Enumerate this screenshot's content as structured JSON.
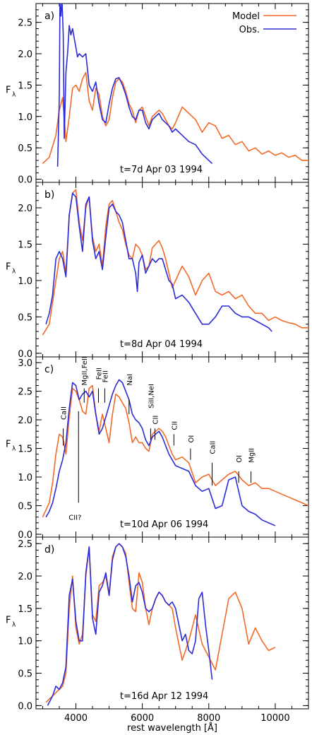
{
  "figure": {
    "x_axis_label": "rest wavelength [Å]",
    "y_axis_label": "F",
    "y_axis_label_sub": "λ",
    "x_tick_labels": [
      "4000",
      "6000",
      "8000",
      "10000"
    ],
    "colors": {
      "model": "#f26a28",
      "obs": "#2b2bd9",
      "axes": "#000000"
    }
  },
  "legend": {
    "model_label": "Model",
    "obs_label": "Obs."
  },
  "chart_data": [
    {
      "type": "line",
      "panel": "a)",
      "caption": "t=7d   Apr 03  1994",
      "xlim": [
        2800,
        11000
      ],
      "ylim": [
        -0.05,
        2.8
      ],
      "yticks": [
        0.0,
        0.5,
        1.0,
        1.5,
        2.0,
        2.5
      ],
      "xticks": [
        4000,
        6000,
        8000,
        10000
      ],
      "series": [
        {
          "name": "Model",
          "color": "#f26a28",
          "x": [
            3000,
            3200,
            3400,
            3500,
            3600,
            3700,
            3800,
            3900,
            4000,
            4100,
            4200,
            4300,
            4400,
            4500,
            4600,
            4700,
            4800,
            4900,
            5000,
            5100,
            5200,
            5300,
            5400,
            5500,
            5600,
            5700,
            5800,
            5900,
            6000,
            6100,
            6200,
            6300,
            6400,
            6500,
            6600,
            6700,
            6800,
            6900,
            7000,
            7200,
            7400,
            7600,
            7800,
            8000,
            8200,
            8400,
            8600,
            8800,
            9000,
            9200,
            9400,
            9600,
            9800,
            10000,
            10200,
            10400,
            10600,
            10800,
            11000
          ],
          "y": [
            0.25,
            0.35,
            0.7,
            1.1,
            1.3,
            0.6,
            1.0,
            1.45,
            1.5,
            1.4,
            1.6,
            1.7,
            1.25,
            1.1,
            1.45,
            1.35,
            1.0,
            0.85,
            0.95,
            1.3,
            1.55,
            1.6,
            1.55,
            1.4,
            1.2,
            1.1,
            0.9,
            1.1,
            1.15,
            1.0,
            0.85,
            1.0,
            1.05,
            1.1,
            1.05,
            0.95,
            0.85,
            0.8,
            0.9,
            1.15,
            1.05,
            0.95,
            0.75,
            0.9,
            0.85,
            0.65,
            0.7,
            0.55,
            0.6,
            0.45,
            0.5,
            0.4,
            0.45,
            0.38,
            0.42,
            0.35,
            0.38,
            0.3,
            0.3
          ]
        },
        {
          "name": "Obs.",
          "color": "#2b2bd9",
          "x": [
            3450,
            3500,
            3520,
            3550,
            3580,
            3620,
            3650,
            3700,
            3750,
            3800,
            3850,
            3900,
            3950,
            4000,
            4050,
            4100,
            4200,
            4300,
            4400,
            4500,
            4600,
            4700,
            4800,
            4900,
            5000,
            5100,
            5200,
            5300,
            5400,
            5500,
            5600,
            5700,
            5800,
            5900,
            6000,
            6100,
            6200,
            6300,
            6400,
            6500,
            6600,
            6700,
            6800,
            6900,
            7000,
            7100,
            7200,
            7400,
            7600,
            7800,
            8000,
            8100
          ],
          "y": [
            0.2,
            1.3,
            2.8,
            2.6,
            2.9,
            2.3,
            0.65,
            1.7,
            2.0,
            2.45,
            2.3,
            2.4,
            2.25,
            2.1,
            1.95,
            2.0,
            1.95,
            2.0,
            1.5,
            1.4,
            1.55,
            1.2,
            0.95,
            0.9,
            1.2,
            1.45,
            1.6,
            1.62,
            1.5,
            1.35,
            1.15,
            1.0,
            0.95,
            1.1,
            1.1,
            0.9,
            0.8,
            0.95,
            1.0,
            1.05,
            0.95,
            0.9,
            0.85,
            0.75,
            0.8,
            0.75,
            0.7,
            0.6,
            0.55,
            0.4,
            0.3,
            0.25
          ]
        }
      ]
    },
    {
      "type": "line",
      "panel": "b)",
      "caption": "t=8d   Apr 04  1994",
      "xlim": [
        2800,
        11000
      ],
      "ylim": [
        -0.05,
        2.35
      ],
      "yticks": [
        0.0,
        0.5,
        1.0,
        1.5,
        2.0
      ],
      "xticks": [
        4000,
        6000,
        8000,
        10000
      ],
      "series": [
        {
          "name": "Model",
          "color": "#f26a28",
          "x": [
            3000,
            3200,
            3400,
            3500,
            3600,
            3700,
            3800,
            3900,
            4000,
            4100,
            4200,
            4300,
            4400,
            4500,
            4600,
            4700,
            4800,
            4900,
            5000,
            5100,
            5200,
            5300,
            5400,
            5500,
            5600,
            5700,
            5800,
            5900,
            6000,
            6100,
            6200,
            6300,
            6400,
            6500,
            6600,
            6700,
            6800,
            6900,
            7000,
            7200,
            7400,
            7600,
            7800,
            8000,
            8200,
            8400,
            8600,
            8800,
            9000,
            9200,
            9400,
            9600,
            9800,
            10000,
            10200,
            10400,
            10600,
            10800,
            11000
          ],
          "y": [
            0.25,
            0.4,
            1.0,
            1.3,
            1.4,
            1.1,
            1.9,
            2.2,
            2.25,
            1.8,
            1.55,
            2.0,
            2.15,
            1.6,
            1.4,
            1.5,
            1.2,
            1.75,
            2.05,
            2.1,
            1.95,
            1.8,
            1.7,
            1.5,
            1.35,
            1.3,
            1.5,
            1.45,
            1.35,
            1.15,
            1.2,
            1.45,
            1.5,
            1.55,
            1.45,
            1.3,
            1.1,
            0.9,
            1.0,
            1.2,
            1.05,
            0.8,
            1.0,
            1.1,
            0.85,
            0.8,
            0.85,
            0.75,
            0.8,
            0.65,
            0.55,
            0.55,
            0.45,
            0.5,
            0.45,
            0.42,
            0.4,
            0.35,
            0.35
          ]
        },
        {
          "name": "Obs.",
          "color": "#2b2bd9",
          "x": [
            3100,
            3200,
            3300,
            3400,
            3500,
            3600,
            3700,
            3800,
            3900,
            4000,
            4100,
            4200,
            4300,
            4400,
            4500,
            4600,
            4700,
            4800,
            4900,
            5000,
            5100,
            5200,
            5300,
            5400,
            5500,
            5600,
            5700,
            5800,
            5850,
            5900,
            6000,
            6100,
            6200,
            6300,
            6400,
            6500,
            6600,
            6700,
            6800,
            6900,
            7000,
            7200,
            7400,
            7600,
            7800,
            8000,
            8200,
            8400,
            8600,
            8800,
            9000,
            9200,
            9400,
            9600,
            9800,
            9900
          ],
          "y": [
            0.4,
            0.55,
            0.8,
            1.3,
            1.4,
            1.3,
            1.05,
            1.9,
            2.2,
            2.15,
            1.75,
            1.4,
            2.05,
            2.15,
            1.55,
            1.3,
            1.4,
            1.15,
            1.6,
            2.0,
            2.05,
            1.95,
            1.9,
            1.8,
            1.55,
            1.3,
            1.3,
            1.1,
            0.85,
            1.25,
            1.35,
            1.1,
            1.2,
            1.3,
            1.25,
            1.3,
            1.3,
            1.15,
            1.0,
            0.95,
            0.75,
            0.8,
            0.7,
            0.55,
            0.4,
            0.4,
            0.5,
            0.65,
            0.65,
            0.55,
            0.5,
            0.5,
            0.45,
            0.4,
            0.35,
            0.3
          ]
        }
      ]
    },
    {
      "type": "line",
      "panel": "c)",
      "caption": "t=10d   Apr 06  1994",
      "xlim": [
        2800,
        11000
      ],
      "ylim": [
        -0.05,
        3.1
      ],
      "yticks": [
        0.0,
        0.5,
        1.0,
        1.5,
        2.0,
        2.5,
        3.0
      ],
      "xticks": [
        4000,
        6000,
        8000,
        10000
      ],
      "annotations": [
        "CaII",
        "CII?",
        "MgII,FeII",
        "FeII",
        "FeII",
        "NaI",
        "SiII,NeI",
        "CII",
        "CII",
        "OI",
        "CaII",
        "OI",
        "MgII"
      ],
      "series": [
        {
          "name": "Model",
          "color": "#f26a28",
          "x": [
            3000,
            3200,
            3300,
            3400,
            3500,
            3600,
            3700,
            3800,
            3900,
            4000,
            4100,
            4200,
            4300,
            4400,
            4500,
            4600,
            4700,
            4800,
            4900,
            5000,
            5100,
            5200,
            5300,
            5400,
            5500,
            5600,
            5700,
            5800,
            5900,
            6000,
            6100,
            6200,
            6300,
            6400,
            6500,
            6600,
            6700,
            6800,
            6900,
            7000,
            7200,
            7400,
            7600,
            7800,
            8000,
            8200,
            8400,
            8600,
            8800,
            9000,
            9200,
            9400,
            9600,
            9800,
            10000,
            10200,
            10400,
            10600,
            10800,
            11000
          ],
          "y": [
            0.3,
            0.55,
            0.9,
            1.4,
            1.75,
            1.7,
            1.4,
            2.05,
            2.55,
            2.5,
            2.35,
            2.15,
            2.1,
            2.55,
            2.6,
            2.1,
            1.8,
            2.1,
            1.85,
            1.6,
            2.1,
            2.45,
            2.4,
            2.3,
            2.2,
            1.95,
            1.6,
            1.7,
            1.6,
            1.6,
            1.5,
            1.45,
            1.75,
            1.8,
            1.85,
            1.8,
            1.7,
            1.55,
            1.4,
            1.3,
            1.35,
            1.25,
            0.9,
            1.0,
            1.05,
            0.85,
            0.95,
            1.05,
            1.1,
            0.95,
            0.85,
            0.9,
            0.8,
            0.8,
            0.75,
            0.7,
            0.65,
            0.6,
            0.55,
            0.5
          ]
        },
        {
          "name": "Obs.",
          "color": "#2b2bd9",
          "x": [
            3100,
            3200,
            3300,
            3400,
            3500,
            3600,
            3700,
            3800,
            3900,
            4000,
            4100,
            4200,
            4300,
            4400,
            4500,
            4600,
            4700,
            4800,
            4900,
            5000,
            5100,
            5200,
            5300,
            5400,
            5500,
            5600,
            5700,
            5800,
            5900,
            6000,
            6100,
            6200,
            6300,
            6400,
            6500,
            6600,
            6700,
            6800,
            6900,
            7000,
            7200,
            7400,
            7600,
            7800,
            8000,
            8200,
            8400,
            8600,
            8800,
            9000,
            9200,
            9400,
            9600,
            9800,
            10000
          ],
          "y": [
            0.3,
            0.4,
            0.55,
            0.8,
            1.1,
            1.3,
            1.6,
            2.2,
            2.65,
            2.6,
            2.35,
            2.45,
            2.5,
            2.4,
            2.5,
            2.1,
            1.75,
            1.85,
            2.05,
            2.25,
            2.45,
            2.6,
            2.7,
            2.65,
            2.5,
            2.35,
            2.1,
            2.0,
            1.95,
            1.85,
            1.65,
            1.55,
            1.7,
            1.75,
            1.8,
            1.7,
            1.55,
            1.4,
            1.3,
            1.2,
            1.15,
            1.1,
            0.85,
            0.75,
            0.8,
            0.45,
            0.5,
            0.95,
            1.0,
            0.5,
            0.4,
            0.35,
            0.25,
            0.2,
            0.15
          ]
        }
      ]
    },
    {
      "type": "line",
      "panel": "d)",
      "caption": "t=16d   Apr 12  1994",
      "xlim": [
        2800,
        11000
      ],
      "ylim": [
        -0.05,
        2.6
      ],
      "yticks": [
        0.0,
        0.5,
        1.0,
        1.5,
        2.0,
        2.5
      ],
      "xticks": [
        4000,
        6000,
        8000,
        10000
      ],
      "series": [
        {
          "name": "Model",
          "color": "#f26a28",
          "x": [
            3100,
            3200,
            3300,
            3400,
            3500,
            3600,
            3700,
            3800,
            3900,
            4000,
            4100,
            4200,
            4300,
            4400,
            4500,
            4600,
            4700,
            4800,
            4900,
            5000,
            5100,
            5200,
            5300,
            5400,
            5500,
            5600,
            5700,
            5800,
            5900,
            6000,
            6100,
            6200,
            6300,
            6400,
            6500,
            6600,
            6700,
            6800,
            6900,
            7000,
            7200,
            7400,
            7600,
            7800,
            8000,
            8200,
            8400,
            8600,
            8800,
            9000,
            9200,
            9400,
            9600,
            9800,
            10000
          ],
          "y": [
            0.05,
            0.1,
            0.15,
            0.2,
            0.25,
            0.3,
            0.5,
            1.5,
            2.0,
            1.2,
            0.95,
            1.1,
            2.0,
            2.45,
            1.4,
            1.3,
            1.85,
            1.9,
            2.0,
            1.7,
            2.3,
            2.45,
            2.5,
            2.45,
            2.35,
            1.9,
            1.5,
            1.45,
            2.05,
            1.9,
            1.5,
            1.25,
            1.5,
            1.65,
            1.75,
            1.7,
            1.6,
            1.55,
            1.5,
            1.2,
            0.7,
            1.0,
            1.4,
            0.95,
            0.75,
            0.55,
            1.1,
            1.65,
            1.75,
            1.5,
            0.95,
            1.2,
            1.0,
            0.85,
            0.9
          ]
        },
        {
          "name": "Obs.",
          "color": "#2b2bd9",
          "x": [
            3150,
            3200,
            3300,
            3400,
            3500,
            3600,
            3700,
            3800,
            3900,
            4000,
            4100,
            4200,
            4300,
            4400,
            4500,
            4600,
            4700,
            4800,
            4900,
            5000,
            5100,
            5200,
            5300,
            5400,
            5500,
            5600,
            5700,
            5800,
            5900,
            6000,
            6100,
            6200,
            6300,
            6400,
            6500,
            6600,
            6700,
            6800,
            6900,
            7000,
            7100,
            7200,
            7300,
            7400,
            7500,
            7600,
            7700,
            7800,
            7900,
            8000,
            8100
          ],
          "y": [
            0.0,
            0.05,
            0.15,
            0.3,
            0.25,
            0.35,
            0.6,
            1.7,
            1.95,
            1.3,
            1.0,
            1.0,
            2.05,
            2.45,
            1.35,
            1.1,
            1.75,
            1.85,
            2.05,
            1.7,
            2.25,
            2.45,
            2.5,
            2.45,
            2.3,
            2.0,
            1.6,
            1.85,
            1.9,
            1.75,
            1.5,
            1.45,
            1.5,
            1.65,
            1.75,
            1.7,
            1.6,
            1.55,
            1.6,
            1.5,
            1.25,
            1.0,
            1.1,
            0.85,
            0.8,
            1.0,
            1.65,
            1.75,
            1.25,
            0.85,
            0.4
          ]
        }
      ]
    }
  ]
}
